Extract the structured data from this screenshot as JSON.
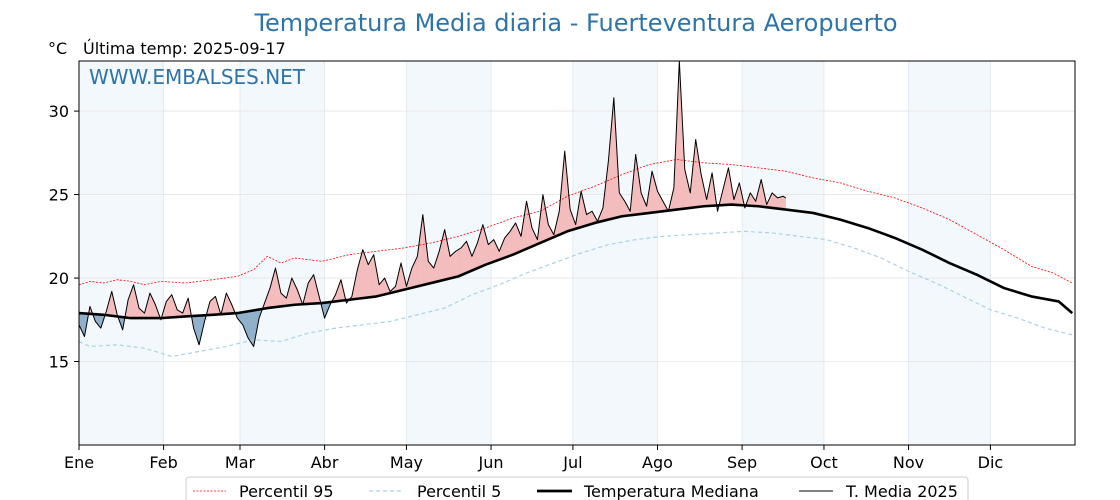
{
  "chart_data": {
    "type": "line",
    "title": "Temperatura Media diaria - Fuerteventura Aeropuerto",
    "unit_label": "°C",
    "last_update_label": "Última temp: 2025-09-17",
    "watermark": "WWW.EMBALSES.NET",
    "ylim": [
      10,
      33
    ],
    "yticks": [
      15,
      20,
      25,
      30
    ],
    "month_labels": [
      "Ene",
      "Feb",
      "Mar",
      "Abr",
      "May",
      "Jun",
      "Jul",
      "Ago",
      "Sep",
      "Oct",
      "Nov",
      "Dic"
    ],
    "grid": true,
    "legend_position": "bottom",
    "legend": [
      "Percentil 95",
      "Percentil 5",
      "Temperatura Mediana",
      "T. Media 2025"
    ],
    "series_p95": {
      "name": "Percentil 95",
      "points": [
        [
          1,
          19.6
        ],
        [
          5,
          19.8
        ],
        [
          10,
          19.7
        ],
        [
          15,
          19.9
        ],
        [
          20,
          19.8
        ],
        [
          25,
          19.6
        ],
        [
          31,
          19.8
        ],
        [
          40,
          19.7
        ],
        [
          50,
          19.9
        ],
        [
          59,
          20.1
        ],
        [
          65,
          20.5
        ],
        [
          70,
          21.3
        ],
        [
          75,
          20.9
        ],
        [
          80,
          21.2
        ],
        [
          90,
          21.0
        ],
        [
          100,
          21.4
        ],
        [
          110,
          21.6
        ],
        [
          120,
          21.8
        ],
        [
          130,
          22.1
        ],
        [
          140,
          22.5
        ],
        [
          150,
          23.0
        ],
        [
          160,
          23.6
        ],
        [
          170,
          24.0
        ],
        [
          180,
          24.9
        ],
        [
          190,
          25.5
        ],
        [
          200,
          26.2
        ],
        [
          210,
          26.8
        ],
        [
          220,
          27.1
        ],
        [
          230,
          26.9
        ],
        [
          240,
          26.8
        ],
        [
          250,
          26.6
        ],
        [
          260,
          26.4
        ],
        [
          270,
          26.0
        ],
        [
          280,
          25.7
        ],
        [
          290,
          25.2
        ],
        [
          300,
          24.8
        ],
        [
          310,
          24.2
        ],
        [
          320,
          23.5
        ],
        [
          330,
          22.6
        ],
        [
          340,
          21.7
        ],
        [
          350,
          20.7
        ],
        [
          358,
          20.3
        ],
        [
          365,
          19.7
        ]
      ]
    },
    "series_p5": {
      "name": "Percentil 5",
      "points": [
        [
          1,
          16.2
        ],
        [
          5,
          15.9
        ],
        [
          15,
          16.0
        ],
        [
          25,
          15.8
        ],
        [
          35,
          15.3
        ],
        [
          45,
          15.6
        ],
        [
          55,
          15.9
        ],
        [
          65,
          16.3
        ],
        [
          75,
          16.2
        ],
        [
          85,
          16.7
        ],
        [
          95,
          17.0
        ],
        [
          105,
          17.2
        ],
        [
          115,
          17.4
        ],
        [
          125,
          17.8
        ],
        [
          135,
          18.2
        ],
        [
          145,
          19.0
        ],
        [
          155,
          19.6
        ],
        [
          165,
          20.3
        ],
        [
          175,
          20.9
        ],
        [
          185,
          21.5
        ],
        [
          195,
          22.0
        ],
        [
          205,
          22.3
        ],
        [
          215,
          22.5
        ],
        [
          225,
          22.6
        ],
        [
          235,
          22.7
        ],
        [
          245,
          22.8
        ],
        [
          255,
          22.7
        ],
        [
          265,
          22.5
        ],
        [
          275,
          22.3
        ],
        [
          285,
          21.8
        ],
        [
          295,
          21.2
        ],
        [
          305,
          20.4
        ],
        [
          315,
          19.7
        ],
        [
          325,
          18.9
        ],
        [
          335,
          18.1
        ],
        [
          345,
          17.6
        ],
        [
          355,
          17.0
        ],
        [
          365,
          16.6
        ]
      ]
    },
    "series_median": {
      "name": "Temperatura Mediana",
      "points": [
        [
          1,
          17.9
        ],
        [
          10,
          17.8
        ],
        [
          20,
          17.6
        ],
        [
          31,
          17.6
        ],
        [
          40,
          17.7
        ],
        [
          50,
          17.8
        ],
        [
          59,
          17.9
        ],
        [
          70,
          18.2
        ],
        [
          80,
          18.4
        ],
        [
          90,
          18.5
        ],
        [
          100,
          18.7
        ],
        [
          110,
          18.9
        ],
        [
          120,
          19.3
        ],
        [
          130,
          19.7
        ],
        [
          140,
          20.1
        ],
        [
          150,
          20.8
        ],
        [
          160,
          21.4
        ],
        [
          170,
          22.1
        ],
        [
          180,
          22.8
        ],
        [
          190,
          23.3
        ],
        [
          200,
          23.7
        ],
        [
          210,
          23.9
        ],
        [
          220,
          24.1
        ],
        [
          230,
          24.3
        ],
        [
          240,
          24.4
        ],
        [
          250,
          24.3
        ],
        [
          260,
          24.1
        ],
        [
          270,
          23.9
        ],
        [
          280,
          23.5
        ],
        [
          290,
          23.0
        ],
        [
          300,
          22.4
        ],
        [
          310,
          21.7
        ],
        [
          320,
          20.9
        ],
        [
          330,
          20.2
        ],
        [
          340,
          19.4
        ],
        [
          350,
          18.9
        ],
        [
          360,
          18.6
        ],
        [
          365,
          17.9
        ]
      ]
    },
    "series_2025": {
      "name": "T. Media 2025",
      "points": [
        [
          1,
          17.2
        ],
        [
          3,
          16.5
        ],
        [
          5,
          18.3
        ],
        [
          7,
          17.4
        ],
        [
          9,
          17.0
        ],
        [
          11,
          18.0
        ],
        [
          13,
          19.2
        ],
        [
          15,
          17.8
        ],
        [
          17,
          16.9
        ],
        [
          19,
          18.7
        ],
        [
          21,
          19.6
        ],
        [
          23,
          18.2
        ],
        [
          25,
          17.9
        ],
        [
          27,
          19.1
        ],
        [
          29,
          18.4
        ],
        [
          31,
          17.5
        ],
        [
          33,
          18.6
        ],
        [
          35,
          19.0
        ],
        [
          37,
          18.1
        ],
        [
          39,
          17.9
        ],
        [
          41,
          18.8
        ],
        [
          43,
          17.0
        ],
        [
          45,
          16.0
        ],
        [
          47,
          17.4
        ],
        [
          49,
          18.6
        ],
        [
          51,
          18.9
        ],
        [
          53,
          17.8
        ],
        [
          55,
          19.1
        ],
        [
          57,
          18.4
        ],
        [
          59,
          17.6
        ],
        [
          61,
          17.2
        ],
        [
          63,
          16.4
        ],
        [
          65,
          15.9
        ],
        [
          67,
          17.6
        ],
        [
          69,
          18.5
        ],
        [
          71,
          19.4
        ],
        [
          73,
          20.6
        ],
        [
          75,
          19.1
        ],
        [
          77,
          18.8
        ],
        [
          79,
          20.0
        ],
        [
          81,
          19.3
        ],
        [
          83,
          18.4
        ],
        [
          85,
          19.7
        ],
        [
          87,
          20.2
        ],
        [
          89,
          18.9
        ],
        [
          91,
          17.6
        ],
        [
          93,
          18.4
        ],
        [
          95,
          19.0
        ],
        [
          97,
          19.9
        ],
        [
          99,
          18.5
        ],
        [
          101,
          18.9
        ],
        [
          103,
          20.5
        ],
        [
          105,
          21.7
        ],
        [
          107,
          20.8
        ],
        [
          109,
          21.4
        ],
        [
          111,
          19.6
        ],
        [
          113,
          20.0
        ],
        [
          115,
          19.2
        ],
        [
          117,
          19.5
        ],
        [
          119,
          20.9
        ],
        [
          121,
          19.5
        ],
        [
          123,
          20.6
        ],
        [
          125,
          21.3
        ],
        [
          127,
          23.8
        ],
        [
          129,
          21.0
        ],
        [
          131,
          20.6
        ],
        [
          133,
          21.6
        ],
        [
          135,
          22.9
        ],
        [
          137,
          21.3
        ],
        [
          139,
          21.6
        ],
        [
          141,
          21.8
        ],
        [
          143,
          22.2
        ],
        [
          145,
          21.3
        ],
        [
          147,
          22.1
        ],
        [
          149,
          23.2
        ],
        [
          151,
          22.0
        ],
        [
          153,
          22.3
        ],
        [
          155,
          21.6
        ],
        [
          157,
          22.4
        ],
        [
          159,
          22.8
        ],
        [
          161,
          23.3
        ],
        [
          163,
          22.5
        ],
        [
          165,
          24.6
        ],
        [
          167,
          23.0
        ],
        [
          169,
          22.3
        ],
        [
          171,
          25.0
        ],
        [
          173,
          23.2
        ],
        [
          175,
          22.6
        ],
        [
          177,
          24.0
        ],
        [
          179,
          27.6
        ],
        [
          181,
          24.1
        ],
        [
          183,
          23.2
        ],
        [
          185,
          25.2
        ],
        [
          187,
          23.8
        ],
        [
          189,
          24.0
        ],
        [
          191,
          23.4
        ],
        [
          193,
          24.2
        ],
        [
          195,
          27.0
        ],
        [
          197,
          30.8
        ],
        [
          199,
          25.1
        ],
        [
          201,
          24.6
        ],
        [
          203,
          24.0
        ],
        [
          205,
          27.4
        ],
        [
          207,
          25.1
        ],
        [
          209,
          24.3
        ],
        [
          211,
          26.4
        ],
        [
          213,
          25.2
        ],
        [
          215,
          24.6
        ],
        [
          217,
          24.0
        ],
        [
          219,
          25.4
        ],
        [
          221,
          33.0
        ],
        [
          223,
          26.5
        ],
        [
          225,
          25.1
        ],
        [
          227,
          28.3
        ],
        [
          229,
          26.2
        ],
        [
          231,
          24.7
        ],
        [
          233,
          26.3
        ],
        [
          235,
          24.0
        ],
        [
          237,
          25.3
        ],
        [
          239,
          26.6
        ],
        [
          241,
          24.7
        ],
        [
          243,
          25.7
        ],
        [
          245,
          24.2
        ],
        [
          247,
          25.1
        ],
        [
          249,
          24.6
        ],
        [
          251,
          25.9
        ],
        [
          253,
          24.4
        ],
        [
          255,
          25.1
        ],
        [
          257,
          24.8
        ],
        [
          259,
          24.9
        ],
        [
          260,
          24.8
        ]
      ]
    }
  }
}
